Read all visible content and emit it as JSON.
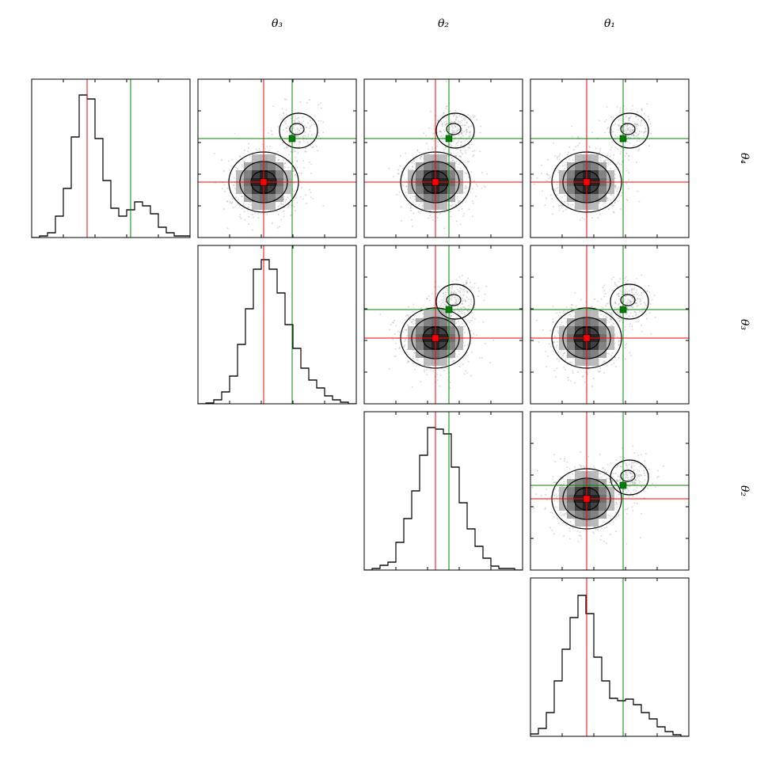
{
  "chart_data": {
    "type": "corner",
    "labels": [
      "θ₄",
      "θ₃",
      "θ₂",
      "θ₁"
    ],
    "xlim": [
      0,
      10
    ],
    "xticks": [
      2,
      4,
      6,
      8
    ],
    "hist_ylim": [
      0,
      200
    ],
    "bins": [
      0,
      0.5,
      1,
      1.5,
      2,
      2.5,
      3,
      3.5,
      4,
      4.5,
      5,
      5.5,
      6,
      6.5,
      7,
      7.5,
      8,
      8.5,
      9,
      9.5,
      10
    ],
    "histograms": [
      [
        0,
        2,
        6,
        27,
        62,
        127,
        180,
        175,
        125,
        72,
        37,
        27,
        35,
        45,
        40,
        30,
        13,
        6,
        2,
        2
      ],
      [
        0,
        1,
        5,
        15,
        35,
        75,
        120,
        170,
        182,
        170,
        140,
        100,
        70,
        45,
        30,
        20,
        10,
        5,
        2,
        0
      ],
      [
        0,
        2,
        6,
        10,
        35,
        65,
        100,
        145,
        180,
        178,
        172,
        130,
        85,
        52,
        30,
        15,
        5,
        2,
        2,
        0
      ],
      [
        3,
        10,
        30,
        70,
        110,
        150,
        178,
        155,
        100,
        70,
        48,
        45,
        47,
        40,
        30,
        22,
        12,
        6,
        2,
        0
      ]
    ],
    "truths": [
      3.5,
      4.15,
      4.5,
      3.55
    ],
    "truths_alt": [
      6.25,
      5.95,
      5.35,
      5.85
    ],
    "truth_colors": [
      "#ff0000",
      "#008000"
    ]
  }
}
